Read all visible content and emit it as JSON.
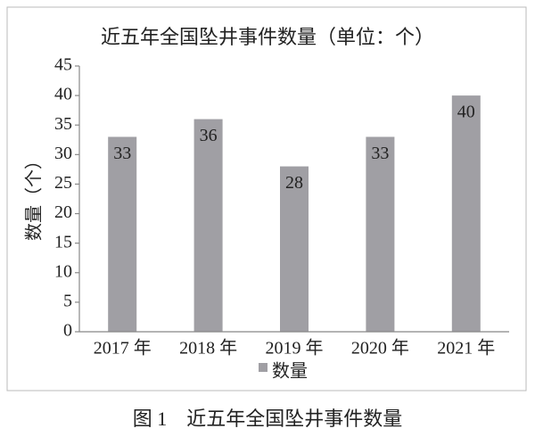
{
  "chart_data": {
    "type": "bar",
    "title": "近五年全国坠井事件数量（单位：个）",
    "y_label": "数量（个）",
    "categories": [
      "2017 年",
      "2018 年",
      "2019 年",
      "2020 年",
      "2021 年"
    ],
    "series": [
      {
        "name": "数量",
        "color": "#a09fa4",
        "values": [
          33,
          36,
          28,
          33,
          40
        ]
      }
    ],
    "ylim": [
      0,
      45
    ],
    "yticks": [
      0,
      5,
      10,
      15,
      20,
      25,
      30,
      35,
      40,
      45
    ],
    "grid": false,
    "legend": "bottom"
  },
  "caption": "图 1　近五年全国坠井事件数量"
}
